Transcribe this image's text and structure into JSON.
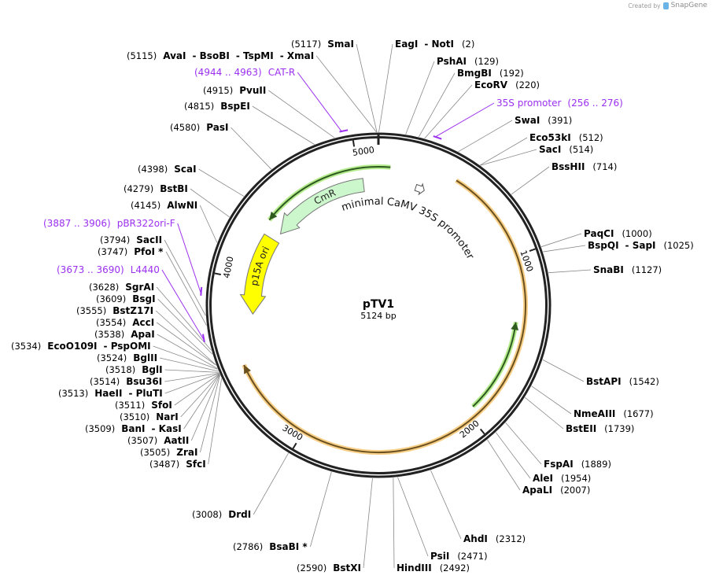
{
  "header": {
    "created_by": "Created by",
    "brand": "SnapGene"
  },
  "plasmid": {
    "name": "pTV1",
    "length_label": "5124 bp",
    "total_bp": 5124
  },
  "ticks": [
    {
      "label": "1000",
      "bp": 1000
    },
    {
      "label": "2000",
      "bp": 2000
    },
    {
      "label": "3000",
      "bp": 3000
    },
    {
      "label": "4000",
      "bp": 4000
    },
    {
      "label": "5000",
      "bp": 5000
    }
  ],
  "features": [
    {
      "name": "",
      "type": "line",
      "start": 455,
      "end": 3502,
      "direction": "forward",
      "color": "#f8cf86",
      "core": "#6b5020"
    },
    {
      "name": "",
      "type": "line",
      "start": 1381,
      "end": 1950,
      "direction": "reverse",
      "color": "#b5ec8e",
      "core": "#2f5a20"
    },
    {
      "name": "",
      "type": "line",
      "start": 4384,
      "end": 71,
      "direction": "reverse",
      "color": "#b5ec8e",
      "core": "#2f5a20"
    },
    {
      "name": "CmR",
      "type": "arrow",
      "start": 4356,
      "end": 5024,
      "direction": "reverse",
      "color": "#ccf7cc"
    },
    {
      "name": "p15A ori",
      "type": "arrow",
      "start": 3786,
      "end": 4298,
      "direction": "reverse",
      "color": "#ffff00"
    },
    {
      "name": "minimal CaMV 35S promoter",
      "type": "small",
      "start": 250,
      "end": 300,
      "direction": "forward",
      "color": "#ffffff"
    }
  ],
  "primers": [
    {
      "name": "CAT-R",
      "range": "(4944 .. 4963)",
      "start": 4944,
      "end": 4963
    },
    {
      "name": "pBR322ori-F",
      "range": "(3887 .. 3906)",
      "start": 3887,
      "end": 3906
    },
    {
      "name": "L4440",
      "range": "(3673 .. 3690)",
      "start": 3673,
      "end": 3690
    },
    {
      "name": "35S promoter",
      "range": "(256 .. 276)",
      "start": 256,
      "end": 276
    }
  ],
  "sites": [
    {
      "names": [
        "SmaI"
      ],
      "pos": "(5117)",
      "bp": 5117
    },
    {
      "names": [
        "EagI",
        "NotI"
      ],
      "pos": "(2)",
      "bp": 2
    },
    {
      "names": [
        "AvaI",
        "BsoBI",
        "TspMI",
        "XmaI"
      ],
      "pos": "(5115)",
      "bp": 5115
    },
    {
      "names": [
        "PvuII"
      ],
      "pos": "(4915)",
      "bp": 4915
    },
    {
      "names": [
        "BspEI"
      ],
      "pos": "(4815)",
      "bp": 4815
    },
    {
      "names": [
        "PasI"
      ],
      "pos": "(4580)",
      "bp": 4580
    },
    {
      "names": [
        "ScaI"
      ],
      "pos": "(4398)",
      "bp": 4398
    },
    {
      "names": [
        "BstBI"
      ],
      "pos": "(4279)",
      "bp": 4279
    },
    {
      "names": [
        "AlwNI"
      ],
      "pos": "(4145)",
      "bp": 4145
    },
    {
      "names": [
        "SacII"
      ],
      "pos": "(3794)",
      "bp": 3794
    },
    {
      "names": [
        "PfoI *"
      ],
      "pos": "(3747)",
      "bp": 3747
    },
    {
      "names": [
        "SgrAI"
      ],
      "pos": "(3628)",
      "bp": 3628
    },
    {
      "names": [
        "BsgI"
      ],
      "pos": "(3609)",
      "bp": 3609
    },
    {
      "names": [
        "BstZ17I"
      ],
      "pos": "(3555)",
      "bp": 3555
    },
    {
      "names": [
        "AccI"
      ],
      "pos": "(3554)",
      "bp": 3554
    },
    {
      "names": [
        "ApaI"
      ],
      "pos": "(3538)",
      "bp": 3538
    },
    {
      "names": [
        "EcoO109I",
        "PspOMI"
      ],
      "pos": "(3534)",
      "bp": 3534
    },
    {
      "names": [
        "BglII"
      ],
      "pos": "(3524)",
      "bp": 3524
    },
    {
      "names": [
        "BglI"
      ],
      "pos": "(3518)",
      "bp": 3518
    },
    {
      "names": [
        "Bsu36I"
      ],
      "pos": "(3514)",
      "bp": 3514
    },
    {
      "names": [
        "HaeII",
        "PluTI"
      ],
      "pos": "(3513)",
      "bp": 3513
    },
    {
      "names": [
        "SfoI"
      ],
      "pos": "(3511)",
      "bp": 3511
    },
    {
      "names": [
        "NarI"
      ],
      "pos": "(3510)",
      "bp": 3510
    },
    {
      "names": [
        "BanI",
        "KasI"
      ],
      "pos": "(3509)",
      "bp": 3509
    },
    {
      "names": [
        "AatII"
      ],
      "pos": "(3507)",
      "bp": 3507
    },
    {
      "names": [
        "ZraI"
      ],
      "pos": "(3505)",
      "bp": 3505
    },
    {
      "names": [
        "SfcI"
      ],
      "pos": "(3487)",
      "bp": 3487
    },
    {
      "names": [
        "DrdI"
      ],
      "pos": "(3008)",
      "bp": 3008
    },
    {
      "names": [
        "BsaBI *"
      ],
      "pos": "(2786)",
      "bp": 2786
    },
    {
      "names": [
        "BstXI"
      ],
      "pos": "(2590)",
      "bp": 2590
    },
    {
      "names": [
        "HindIII"
      ],
      "pos": "(2492)",
      "bp": 2492
    },
    {
      "names": [
        "PsiI"
      ],
      "pos": "(2471)",
      "bp": 2471
    },
    {
      "names": [
        "AhdI"
      ],
      "pos": "(2312)",
      "bp": 2312
    },
    {
      "names": [
        "ApaLI"
      ],
      "pos": "(2007)",
      "bp": 2007
    },
    {
      "names": [
        "AleI"
      ],
      "pos": "(1954)",
      "bp": 1954
    },
    {
      "names": [
        "FspAI"
      ],
      "pos": "(1889)",
      "bp": 1889
    },
    {
      "names": [
        "BstEII"
      ],
      "pos": "(1739)",
      "bp": 1739
    },
    {
      "names": [
        "NmeAIII"
      ],
      "pos": "(1677)",
      "bp": 1677
    },
    {
      "names": [
        "BstAPI"
      ],
      "pos": "(1542)",
      "bp": 1542
    },
    {
      "names": [
        "SnaBI"
      ],
      "pos": "(1127)",
      "bp": 1127
    },
    {
      "names": [
        "BspQI",
        "SapI"
      ],
      "pos": "(1025)",
      "bp": 1025
    },
    {
      "names": [
        "PaqCI"
      ],
      "pos": "(1000)",
      "bp": 1000
    },
    {
      "names": [
        "BssHII"
      ],
      "pos": "(714)",
      "bp": 714
    },
    {
      "names": [
        "SacI"
      ],
      "pos": "(514)",
      "bp": 514
    },
    {
      "names": [
        "Eco53kI"
      ],
      "pos": "(512)",
      "bp": 512
    },
    {
      "names": [
        "SwaI"
      ],
      "pos": "(391)",
      "bp": 391
    },
    {
      "names": [
        "EcoRV"
      ],
      "pos": "(220)",
      "bp": 220
    },
    {
      "names": [
        "BmgBI"
      ],
      "pos": "(192)",
      "bp": 192
    },
    {
      "names": [
        "PshAI"
      ],
      "pos": "(129)",
      "bp": 129
    }
  ]
}
